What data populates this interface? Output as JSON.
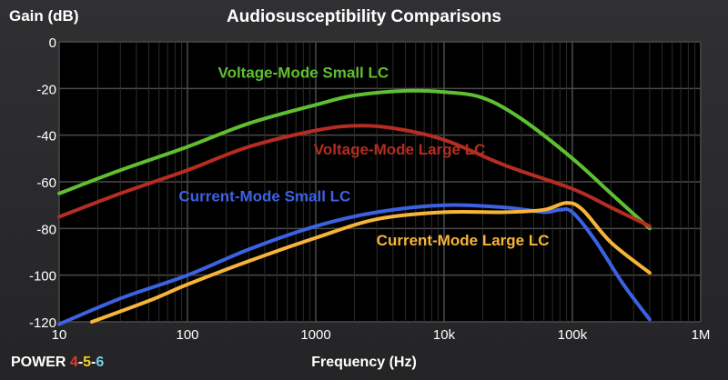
{
  "chart_data": {
    "type": "line",
    "title": "Audiosusceptibility Comparisons",
    "xlabel": "Frequency (Hz)",
    "ylabel": "Gain (dB)",
    "x_scale": "log",
    "xlim": [
      10,
      1000000
    ],
    "ylim": [
      -120,
      0
    ],
    "grid": true,
    "x_ticks": [
      {
        "value": 10,
        "label": "10"
      },
      {
        "value": 100,
        "label": "100"
      },
      {
        "value": 1000,
        "label": "1000"
      },
      {
        "value": 10000,
        "label": "10k"
      },
      {
        "value": 100000,
        "label": "100k"
      },
      {
        "value": 1000000,
        "label": "1M"
      }
    ],
    "y_ticks": [
      {
        "value": 0,
        "label": "0"
      },
      {
        "value": -20,
        "label": "-20"
      },
      {
        "value": -40,
        "label": "-40"
      },
      {
        "value": -60,
        "label": "-60"
      },
      {
        "value": -80,
        "label": "-80"
      },
      {
        "value": -100,
        "label": "-100"
      },
      {
        "value": -120,
        "label": "-120"
      }
    ],
    "series": [
      {
        "name": "Voltage-Mode Small LC",
        "color": "#5fbf32",
        "points": [
          [
            10,
            -65
          ],
          [
            30,
            -55
          ],
          [
            100,
            -45
          ],
          [
            300,
            -35
          ],
          [
            1000,
            -27
          ],
          [
            2000,
            -23
          ],
          [
            5000,
            -21
          ],
          [
            10000,
            -21.5
          ],
          [
            20000,
            -24
          ],
          [
            40000,
            -33
          ],
          [
            100000,
            -50
          ],
          [
            200000,
            -65
          ],
          [
            400000,
            -80
          ]
        ]
      },
      {
        "name": "Voltage-Mode Large LC",
        "color": "#b52d22",
        "points": [
          [
            10,
            -75
          ],
          [
            30,
            -65
          ],
          [
            100,
            -55
          ],
          [
            300,
            -45
          ],
          [
            1000,
            -38
          ],
          [
            2000,
            -36
          ],
          [
            4000,
            -37
          ],
          [
            10000,
            -42
          ],
          [
            30000,
            -53
          ],
          [
            100000,
            -63
          ],
          [
            200000,
            -71
          ],
          [
            400000,
            -79
          ]
        ]
      },
      {
        "name": "Current-Mode Small LC",
        "color": "#3c62e2",
        "points": [
          [
            10,
            -121
          ],
          [
            30,
            -110
          ],
          [
            100,
            -100
          ],
          [
            300,
            -89
          ],
          [
            1000,
            -79
          ],
          [
            3000,
            -73
          ],
          [
            10000,
            -70
          ],
          [
            30000,
            -71
          ],
          [
            60000,
            -73
          ],
          [
            80000,
            -72
          ],
          [
            100000,
            -73
          ],
          [
            150000,
            -85
          ],
          [
            250000,
            -104
          ],
          [
            400000,
            -119
          ]
        ]
      },
      {
        "name": "Current-Mode Large LC",
        "color": "#f7b43a",
        "points": [
          [
            18,
            -120
          ],
          [
            50,
            -111
          ],
          [
            100,
            -104
          ],
          [
            300,
            -94
          ],
          [
            1000,
            -84
          ],
          [
            3000,
            -76
          ],
          [
            10000,
            -73
          ],
          [
            30000,
            -73
          ],
          [
            60000,
            -72
          ],
          [
            90000,
            -69
          ],
          [
            120000,
            -72
          ],
          [
            200000,
            -86
          ],
          [
            400000,
            -99
          ]
        ]
      }
    ],
    "annotations": [
      {
        "text": "Voltage-Mode Small LC",
        "series": 0,
        "x": 800,
        "y": -13
      },
      {
        "text": "Voltage-Mode Large LC",
        "series": 1,
        "x": 4500,
        "y": -46
      },
      {
        "text": "Current-Mode Small LC",
        "series": 2,
        "x": 400,
        "y": -66
      },
      {
        "text": "Current-Mode Large LC",
        "series": 3,
        "x": 14000,
        "y": -85
      }
    ]
  },
  "brand": {
    "word": "POWER",
    "d4": "4",
    "sep1": "-",
    "d5": "5",
    "sep2": "-",
    "d6": "6"
  }
}
